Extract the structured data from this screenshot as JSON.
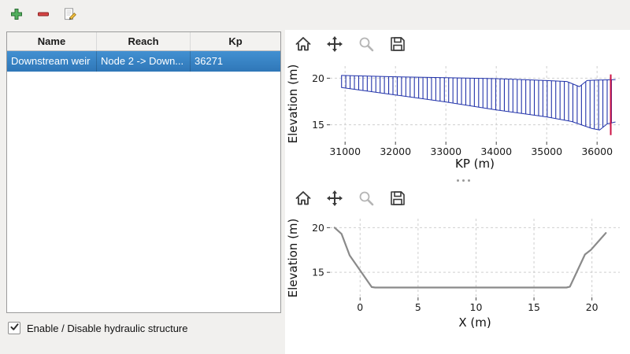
{
  "main_toolbar": {
    "buttons": [
      {
        "name": "add-structure",
        "icon": "plus-icon"
      },
      {
        "name": "remove-structure",
        "icon": "minus-icon"
      },
      {
        "name": "edit-structure",
        "icon": "edit-icon"
      }
    ]
  },
  "structures_table": {
    "columns": [
      "Name",
      "Reach",
      "Kp"
    ],
    "rows": [
      {
        "name": "Downstream weir",
        "reach": "Node 2 -> Down...",
        "kp": "36271",
        "selected": true
      }
    ]
  },
  "enable_checkbox": {
    "label": "Enable / Disable hydraulic structure",
    "checked": true
  },
  "chart_toolbar": {
    "icons": [
      "home-icon",
      "pan-icon",
      "zoom-icon",
      "save-icon"
    ],
    "zoom_disabled": true
  },
  "colors": {
    "selection_blue": "#3584c8",
    "profile_blue": "#2233aa",
    "structure_marker_red": "#cc1144",
    "cross_section_gray": "#8a8a8a"
  },
  "chart_data": [
    {
      "type": "line",
      "title": "",
      "xlabel": "KP (m)",
      "ylabel": "Elevation (m)",
      "xlim": [
        30700,
        36450
      ],
      "ylim": [
        13.2,
        21.3
      ],
      "xticks": [
        31000,
        32000,
        33000,
        34000,
        35000,
        36000
      ],
      "yticks": [
        15,
        20
      ],
      "grid": true,
      "series": [
        {
          "name": "top-of-sections",
          "color": "#2233aa",
          "width": 1,
          "x": [
            30930,
            32000,
            33000,
            34000,
            35000,
            35400,
            35650,
            35800,
            36000,
            36360
          ],
          "y": [
            20.3,
            20.15,
            20.05,
            19.95,
            19.75,
            19.65,
            19.1,
            19.75,
            19.8,
            19.85
          ]
        },
        {
          "name": "bed-profile",
          "color": "#2233aa",
          "width": 1,
          "x": [
            30930,
            32000,
            33000,
            34000,
            35000,
            35500,
            35900,
            36050,
            36200,
            36360
          ],
          "y": [
            19.0,
            18.2,
            17.45,
            16.6,
            15.85,
            15.35,
            14.6,
            14.45,
            15.1,
            15.3
          ]
        }
      ],
      "hatch": {
        "start": 30930,
        "end": 36360,
        "step": 85,
        "color": "#2233aa",
        "width": 1.1
      },
      "vline": {
        "x": 36271,
        "y0": 13.9,
        "y1": 20.4,
        "color": "#cc1144",
        "meaning": "structure-kp-marker"
      }
    },
    {
      "type": "line",
      "title": "",
      "xlabel": "X (m)",
      "ylabel": "Elevation (m)",
      "xlim": [
        -2.6,
        22.4
      ],
      "ylim": [
        12.2,
        21.0
      ],
      "xticks": [
        0,
        5,
        10,
        15,
        20
      ],
      "yticks": [
        15,
        20
      ],
      "grid": true,
      "series": [
        {
          "name": "cross-section-profile",
          "color": "#8a8a8a",
          "width": 2.2,
          "x": [
            -2.2,
            -1.6,
            -0.9,
            1.0,
            1.3,
            17.8,
            18.1,
            19.4,
            19.9,
            21.2
          ],
          "y": [
            20.0,
            19.3,
            16.9,
            13.35,
            13.3,
            13.3,
            13.4,
            17.0,
            17.5,
            19.4
          ]
        }
      ]
    }
  ]
}
